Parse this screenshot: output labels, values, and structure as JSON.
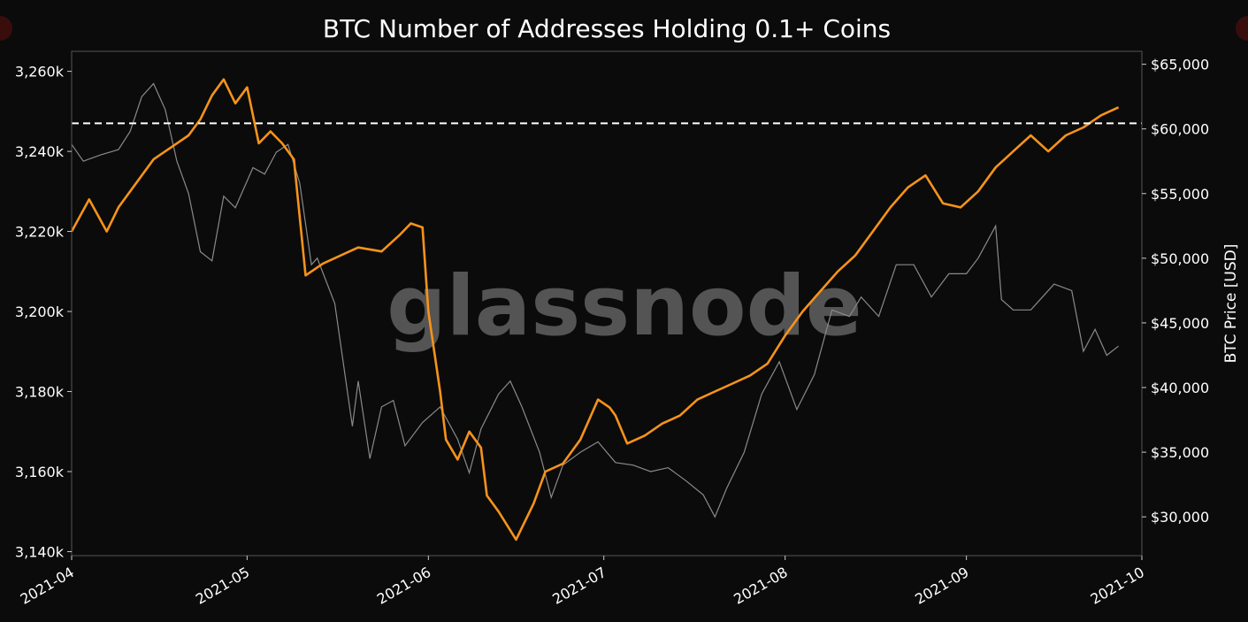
{
  "chart_data": {
    "type": "line",
    "title": "BTC Number of Addresses Holding 0.1+ Coins",
    "watermark": "glassnode",
    "xlabel": "",
    "ylabel_left": "",
    "ylabel_right": "BTC Price [USD]",
    "x_range": [
      "2021-04-01",
      "2021-10-01"
    ],
    "x_ticks": [
      "2021-04",
      "2021-05",
      "2021-06",
      "2021-07",
      "2021-08",
      "2021-09",
      "2021-10"
    ],
    "ylim_left": [
      3139000,
      3265000
    ],
    "y_ticks_left": [
      "3,140k",
      "3,160k",
      "3,180k",
      "3,200k",
      "3,220k",
      "3,240k",
      "3,260k"
    ],
    "ylim_right": [
      27000,
      66000
    ],
    "y_ticks_right": [
      "$30,000",
      "$35,000",
      "$40,000",
      "$45,000",
      "$50,000",
      "$55,000",
      "$60,000",
      "$65,000"
    ],
    "reference_line_left": 3247000,
    "grid": false,
    "colors": {
      "addresses": "#f7931a",
      "price": "#8a8a8a",
      "reference": "#ffffff",
      "background": "#0b0b0b"
    },
    "series": [
      {
        "axis": "left",
        "x": [
          "2021-04-01",
          "2021-04-04",
          "2021-04-07",
          "2021-04-09",
          "2021-04-12",
          "2021-04-15",
          "2021-04-18",
          "2021-04-21",
          "2021-04-23",
          "2021-04-25",
          "2021-04-27",
          "2021-04-29",
          "2021-05-01",
          "2021-05-03",
          "2021-05-05",
          "2021-05-07",
          "2021-05-09",
          "2021-05-11",
          "2021-05-12",
          "2021-05-14",
          "2021-05-17",
          "2021-05-20",
          "2021-05-24",
          "2021-05-27",
          "2021-05-29",
          "2021-05-31",
          "2021-06-01",
          "2021-06-03",
          "2021-06-04",
          "2021-06-06",
          "2021-06-08",
          "2021-06-10",
          "2021-06-11",
          "2021-06-13",
          "2021-06-16",
          "2021-06-19",
          "2021-06-21",
          "2021-06-24",
          "2021-06-27",
          "2021-06-30",
          "2021-07-02",
          "2021-07-03",
          "2021-07-05",
          "2021-07-08",
          "2021-07-11",
          "2021-07-14",
          "2021-07-17",
          "2021-07-20",
          "2021-07-23",
          "2021-07-26",
          "2021-07-29",
          "2021-08-01",
          "2021-08-04",
          "2021-08-07",
          "2021-08-10",
          "2021-08-13",
          "2021-08-16",
          "2021-08-19",
          "2021-08-22",
          "2021-08-25",
          "2021-08-28",
          "2021-08-31",
          "2021-09-03",
          "2021-09-06",
          "2021-09-09",
          "2021-09-12",
          "2021-09-15",
          "2021-09-18",
          "2021-09-21",
          "2021-09-24",
          "2021-09-27"
        ],
        "values": [
          3220000,
          3228000,
          3220000,
          3226000,
          3232000,
          3238000,
          3241000,
          3244000,
          3248000,
          3254000,
          3258000,
          3252000,
          3256000,
          3242000,
          3245000,
          3242000,
          3238000,
          3209000,
          3210000,
          3212000,
          3214000,
          3216000,
          3215000,
          3219000,
          3222000,
          3221000,
          3200000,
          3180000,
          3168000,
          3163000,
          3170000,
          3166000,
          3154000,
          3150000,
          3143000,
          3152000,
          3160000,
          3162000,
          3168000,
          3178000,
          3176000,
          3174000,
          3167000,
          3169000,
          3172000,
          3174000,
          3178000,
          3180000,
          3182000,
          3184000,
          3187000,
          3194000,
          3200000,
          3205000,
          3210000,
          3214000,
          3220000,
          3226000,
          3231000,
          3234000,
          3227000,
          3226000,
          3230000,
          3236000,
          3240000,
          3244000,
          3240000,
          3244000,
          3246000,
          3249000,
          3251000
        ]
      },
      {
        "axis": "right",
        "x": [
          "2021-04-01",
          "2021-04-03",
          "2021-04-06",
          "2021-04-09",
          "2021-04-11",
          "2021-04-13",
          "2021-04-15",
          "2021-04-17",
          "2021-04-19",
          "2021-04-21",
          "2021-04-23",
          "2021-04-25",
          "2021-04-27",
          "2021-04-29",
          "2021-05-02",
          "2021-05-04",
          "2021-05-06",
          "2021-05-08",
          "2021-05-10",
          "2021-05-12",
          "2021-05-13",
          "2021-05-16",
          "2021-05-19",
          "2021-05-20",
          "2021-05-22",
          "2021-05-24",
          "2021-05-26",
          "2021-05-28",
          "2021-05-31",
          "2021-06-03",
          "2021-06-06",
          "2021-06-08",
          "2021-06-10",
          "2021-06-13",
          "2021-06-15",
          "2021-06-17",
          "2021-06-20",
          "2021-06-22",
          "2021-06-24",
          "2021-06-27",
          "2021-06-30",
          "2021-07-03",
          "2021-07-06",
          "2021-07-09",
          "2021-07-12",
          "2021-07-15",
          "2021-07-18",
          "2021-07-20",
          "2021-07-22",
          "2021-07-25",
          "2021-07-28",
          "2021-07-31",
          "2021-08-03",
          "2021-08-06",
          "2021-08-09",
          "2021-08-12",
          "2021-08-14",
          "2021-08-17",
          "2021-08-20",
          "2021-08-23",
          "2021-08-26",
          "2021-08-29",
          "2021-09-01",
          "2021-09-03",
          "2021-09-06",
          "2021-09-07",
          "2021-09-09",
          "2021-09-12",
          "2021-09-14",
          "2021-09-16",
          "2021-09-19",
          "2021-09-21",
          "2021-09-23",
          "2021-09-25",
          "2021-09-27"
        ],
        "values": [
          58800,
          57500,
          58000,
          58400,
          59800,
          62500,
          63500,
          61500,
          57500,
          55000,
          50500,
          49800,
          54800,
          53900,
          57000,
          56500,
          58200,
          58800,
          55800,
          49500,
          50000,
          46500,
          37000,
          40500,
          34500,
          38500,
          39000,
          35500,
          37300,
          38500,
          36000,
          33400,
          36800,
          39500,
          40500,
          38500,
          35000,
          31500,
          34000,
          35000,
          35800,
          34200,
          34000,
          33500,
          33800,
          32800,
          31700,
          30000,
          32200,
          35000,
          39500,
          42000,
          38300,
          41000,
          46000,
          45500,
          47000,
          45500,
          49500,
          49500,
          47000,
          48800,
          48800,
          50000,
          52500,
          46800,
          46000,
          46000,
          47000,
          48000,
          47500,
          42800,
          44500,
          42500,
          43200
        ]
      }
    ]
  }
}
